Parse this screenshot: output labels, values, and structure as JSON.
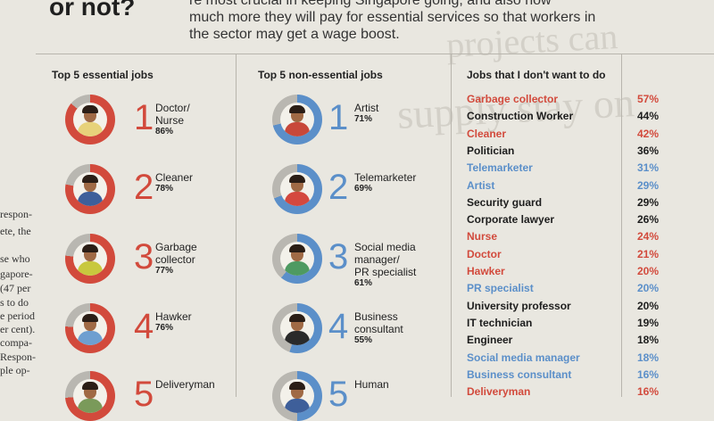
{
  "header": {
    "headline": "or not?",
    "intro_lines": [
      "re most crucial in keeping Singapore going, and also how",
      "much more they will pay for essential services so that workers in",
      "the sector may get a wage boost."
    ]
  },
  "background_text": {
    "ghost_lines": [
      "projects can",
      "supply stay on"
    ],
    "side_lines": [
      "respon-",
      "ete, the",
      "se who",
      "gapore-",
      "(47 per",
      "s to do",
      "e period",
      "er cent).",
      "compa-",
      "Respon-",
      "ple op-"
    ]
  },
  "colors": {
    "red": "#d24a3c",
    "blue": "#5b8fc9",
    "grey": "#b9b7b1",
    "divider": "#b8b5ad"
  },
  "essential": {
    "title": "Top 5 essential jobs",
    "items": [
      {
        "rank": "1",
        "name": "Doctor/ Nurse",
        "lines": [
          "Doctor/",
          "Nurse"
        ],
        "pct": "86%",
        "fraction": 0.86,
        "icon": "doctor-icon",
        "outfit": "#e7d27a"
      },
      {
        "rank": "2",
        "name": "Cleaner",
        "lines": [
          "Cleaner"
        ],
        "pct": "78%",
        "fraction": 0.78,
        "icon": "cleaner-icon",
        "outfit": "#3e5f9a"
      },
      {
        "rank": "3",
        "name": "Garbage collector",
        "lines": [
          "Garbage",
          "collector"
        ],
        "pct": "77%",
        "fraction": 0.77,
        "icon": "garbage-collector-icon",
        "outfit": "#c8c83e"
      },
      {
        "rank": "4",
        "name": "Hawker",
        "lines": [
          "Hawker"
        ],
        "pct": "76%",
        "fraction": 0.76,
        "icon": "hawker-icon",
        "outfit": "#6e9fd0"
      },
      {
        "rank": "5",
        "name": "Deliveryman",
        "lines": [
          "Deliveryman"
        ],
        "pct": "",
        "fraction": 0.74,
        "icon": "deliveryman-icon",
        "outfit": "#7a9a5a"
      }
    ]
  },
  "non_essential": {
    "title": "Top 5 non-essential jobs",
    "items": [
      {
        "rank": "1",
        "name": "Artist",
        "lines": [
          "Artist"
        ],
        "pct": "71%",
        "fraction": 0.71,
        "icon": "artist-icon",
        "outfit": "#c8483a"
      },
      {
        "rank": "2",
        "name": "Telemarketer",
        "lines": [
          "Telemarketer"
        ],
        "pct": "69%",
        "fraction": 0.69,
        "icon": "telemarketer-icon",
        "outfit": "#d4483e"
      },
      {
        "rank": "3",
        "name": "Social media manager/ PR specialist",
        "lines": [
          "Social media",
          "manager/",
          "PR specialist"
        ],
        "pct": "61%",
        "fraction": 0.61,
        "icon": "social-media-manager-icon",
        "outfit": "#4e9a62"
      },
      {
        "rank": "4",
        "name": "Business consultant",
        "lines": [
          "Business",
          "consultant"
        ],
        "pct": "55%",
        "fraction": 0.55,
        "icon": "business-consultant-icon",
        "outfit": "#2a2a2a"
      },
      {
        "rank": "5",
        "name": "Human",
        "lines": [
          "Human"
        ],
        "pct": "",
        "fraction": 0.5,
        "icon": "human-resources-icon",
        "outfit": "#3e5f9a"
      }
    ]
  },
  "dont_want": {
    "title": "Jobs that I don't want to do",
    "rows": [
      {
        "name": "Garbage collector",
        "pct": "57%",
        "color": "red"
      },
      {
        "name": "Construction Worker",
        "pct": "44%",
        "color": "black"
      },
      {
        "name": "Cleaner",
        "pct": "42%",
        "color": "red"
      },
      {
        "name": "Politician",
        "pct": "36%",
        "color": "black"
      },
      {
        "name": "Telemarketer",
        "pct": "31%",
        "color": "blue"
      },
      {
        "name": "Artist",
        "pct": "29%",
        "color": "blue"
      },
      {
        "name": "Security guard",
        "pct": "29%",
        "color": "black"
      },
      {
        "name": "Corporate lawyer",
        "pct": "26%",
        "color": "black"
      },
      {
        "name": "Nurse",
        "pct": "24%",
        "color": "red"
      },
      {
        "name": "Doctor",
        "pct": "21%",
        "color": "red"
      },
      {
        "name": "Hawker",
        "pct": "20%",
        "color": "red"
      },
      {
        "name": "PR specialist",
        "pct": "20%",
        "color": "blue"
      },
      {
        "name": "University professor",
        "pct": "20%",
        "color": "black"
      },
      {
        "name": "IT technician",
        "pct": "19%",
        "color": "black"
      },
      {
        "name": "Engineer",
        "pct": "18%",
        "color": "black"
      },
      {
        "name": "Social media manager",
        "pct": "18%",
        "color": "blue"
      },
      {
        "name": "Business consultant",
        "pct": "16%",
        "color": "blue"
      },
      {
        "name": "Deliveryman",
        "pct": "16%",
        "color": "red"
      }
    ]
  }
}
